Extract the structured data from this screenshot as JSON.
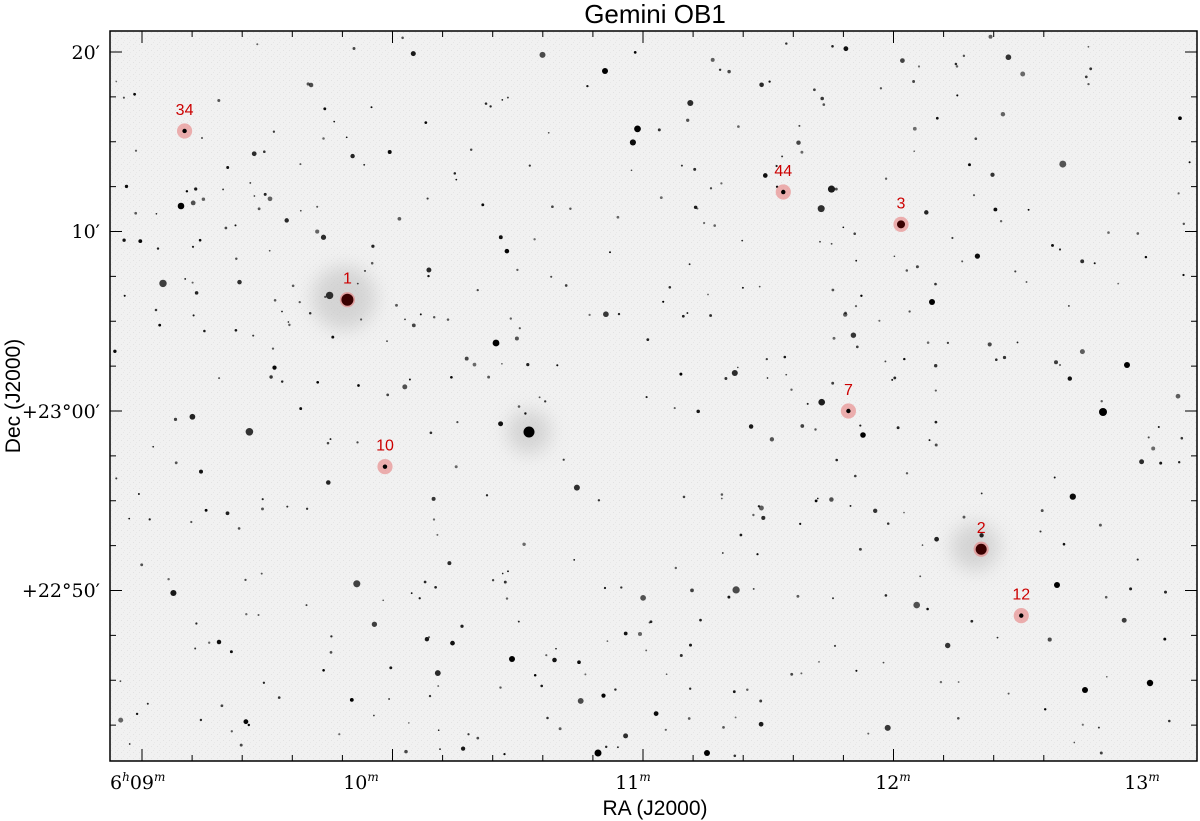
{
  "figure": {
    "title": "Gemini OB1",
    "xlabel": "RA (J2000)",
    "ylabel": "Dec (J2000)",
    "colors": {
      "sky_background": "#f1f1f1",
      "star": "#000000",
      "marker_fill": "#e88080",
      "label": "#cc0000",
      "frame": "#000000"
    }
  },
  "axes": {
    "x_ticks": [
      {
        "main": "6",
        "sup1": "h",
        "mid": "09",
        "sup2": "m"
      },
      {
        "main": "10",
        "sup1": "",
        "mid": "",
        "sup2": "m"
      },
      {
        "main": "11",
        "sup1": "",
        "mid": "",
        "sup2": "m"
      },
      {
        "main": "12",
        "sup1": "",
        "mid": "",
        "sup2": "m"
      },
      {
        "main": "13",
        "sup1": "",
        "mid": "",
        "sup2": "m"
      }
    ],
    "y_ticks": [
      {
        "text": "20′"
      },
      {
        "text": "10′"
      },
      {
        "text": "+23°00′"
      },
      {
        "text": "+22°50′"
      }
    ]
  },
  "labeled_sources": [
    {
      "id": "1",
      "ra_min": 9.82,
      "dec_arcmin_offset": 6.2
    },
    {
      "id": "2",
      "ra_min": 12.35,
      "dec_arcmin_offset": -7.7
    },
    {
      "id": "3",
      "ra_min": 12.03,
      "dec_arcmin_offset": 10.4
    },
    {
      "id": "7",
      "ra_min": 11.82,
      "dec_arcmin_offset": 0.0
    },
    {
      "id": "10",
      "ra_min": 9.97,
      "dec_arcmin_offset": -3.1
    },
    {
      "id": "12",
      "ra_min": 12.51,
      "dec_arcmin_offset": -11.4
    },
    {
      "id": "34",
      "ra_min": 9.17,
      "dec_arcmin_offset": 15.6
    },
    {
      "id": "44",
      "ra_min": 11.56,
      "dec_arcmin_offset": 12.2
    }
  ]
}
